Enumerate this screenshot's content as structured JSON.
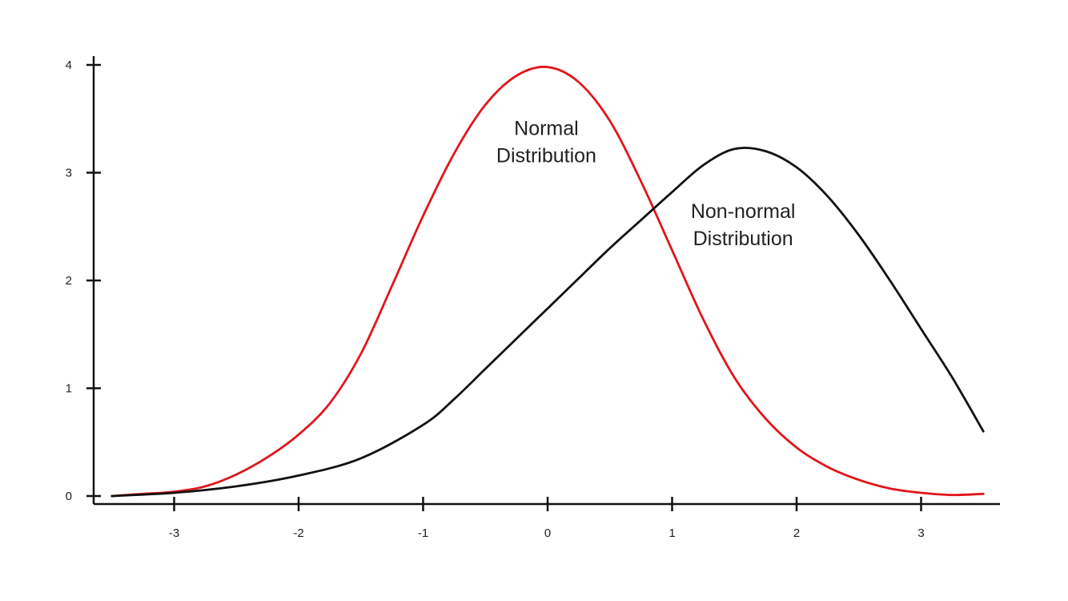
{
  "chart_data": {
    "type": "line",
    "title": "",
    "xlabel": "",
    "ylabel": "",
    "xlim": [
      -3.5,
      3.5
    ],
    "ylim": [
      0,
      4
    ],
    "grid": false,
    "x_ticks": [
      -3,
      -2,
      -1,
      0,
      1,
      2,
      3
    ],
    "y_ticks": [
      0,
      1,
      2,
      3,
      4
    ],
    "series": [
      {
        "key": "normal",
        "color": "#e0161b",
        "points": [
          [
            -3.5,
            0.0
          ],
          [
            -3.25,
            0.02
          ],
          [
            -3.0,
            0.04
          ],
          [
            -2.75,
            0.09
          ],
          [
            -2.5,
            0.2
          ],
          [
            -2.25,
            0.36
          ],
          [
            -2.0,
            0.57
          ],
          [
            -1.75,
            0.86
          ],
          [
            -1.5,
            1.32
          ],
          [
            -1.25,
            1.95
          ],
          [
            -1.0,
            2.6
          ],
          [
            -0.75,
            3.18
          ],
          [
            -0.5,
            3.63
          ],
          [
            -0.25,
            3.9
          ],
          [
            0.0,
            3.98
          ],
          [
            0.25,
            3.84
          ],
          [
            0.5,
            3.48
          ],
          [
            0.75,
            2.92
          ],
          [
            1.0,
            2.28
          ],
          [
            1.25,
            1.64
          ],
          [
            1.5,
            1.1
          ],
          [
            1.75,
            0.72
          ],
          [
            2.0,
            0.45
          ],
          [
            2.25,
            0.27
          ],
          [
            2.5,
            0.15
          ],
          [
            2.75,
            0.07
          ],
          [
            3.0,
            0.03
          ],
          [
            3.25,
            0.01
          ],
          [
            3.5,
            0.02
          ]
        ]
      },
      {
        "key": "nonnormal",
        "color": "#111111",
        "points": [
          [
            -3.5,
            0.0
          ],
          [
            -3.0,
            0.03
          ],
          [
            -2.5,
            0.09
          ],
          [
            -2.0,
            0.19
          ],
          [
            -1.5,
            0.35
          ],
          [
            -1.0,
            0.66
          ],
          [
            -0.75,
            0.9
          ],
          [
            -0.5,
            1.18
          ],
          [
            -0.25,
            1.46
          ],
          [
            0.0,
            1.74
          ],
          [
            0.25,
            2.02
          ],
          [
            0.5,
            2.3
          ],
          [
            0.75,
            2.56
          ],
          [
            1.0,
            2.82
          ],
          [
            1.25,
            3.07
          ],
          [
            1.5,
            3.22
          ],
          [
            1.75,
            3.2
          ],
          [
            2.0,
            3.05
          ],
          [
            2.25,
            2.78
          ],
          [
            2.5,
            2.42
          ],
          [
            2.75,
            2.0
          ],
          [
            3.0,
            1.55
          ],
          [
            3.25,
            1.1
          ],
          [
            3.5,
            0.6
          ]
        ]
      }
    ],
    "annotations": [
      {
        "key": "normal",
        "lines": [
          "Normal",
          "Distribution"
        ],
        "x": -0.01,
        "y": 3.35
      },
      {
        "key": "nonnormal",
        "lines": [
          "Non-normal",
          "Distribution"
        ],
        "x": 1.57,
        "y": 2.58
      }
    ]
  }
}
